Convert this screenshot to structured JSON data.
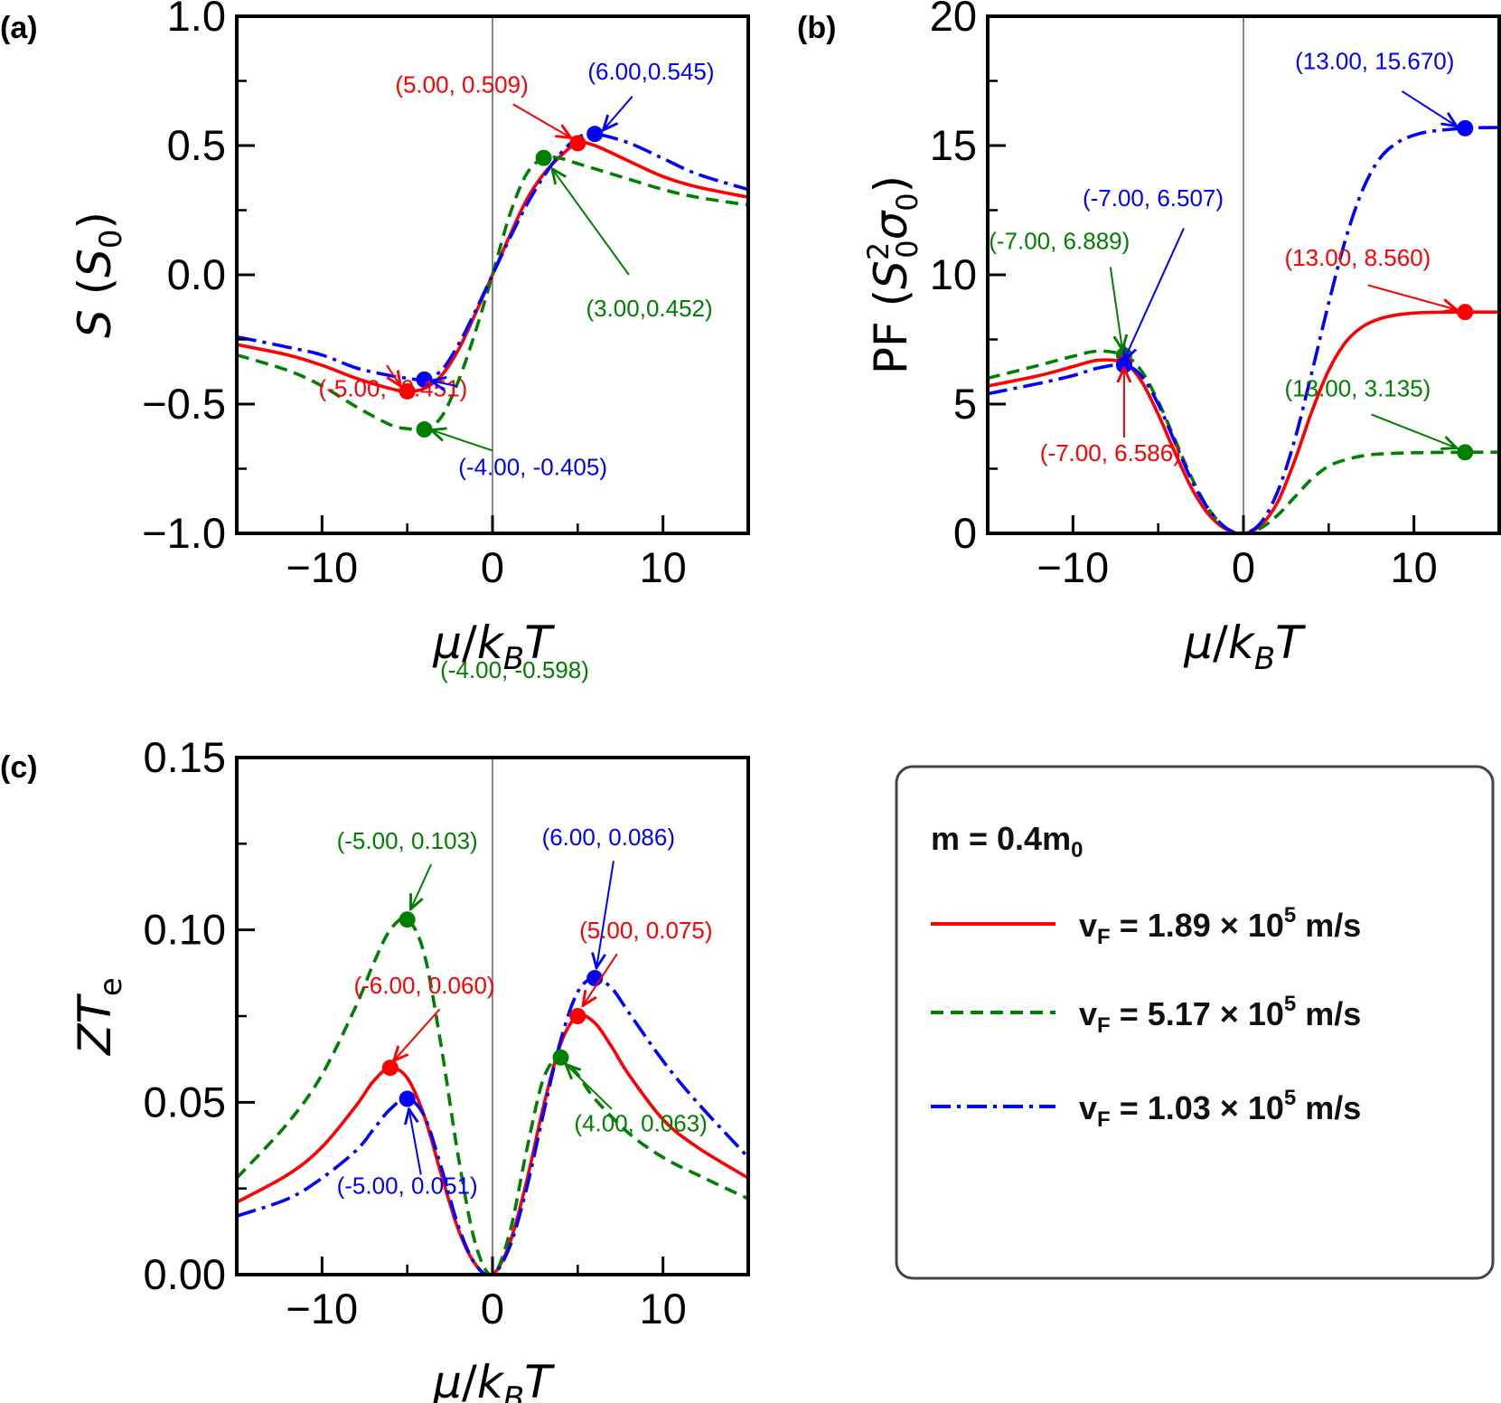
{
  "chart_data": [
    {
      "type": "line",
      "panel_label": "(a)",
      "xlabel": "μ/k_BT",
      "ylabel": "S (S0)",
      "xlim": [
        -15,
        15
      ],
      "ylim": [
        -1.0,
        1.0
      ],
      "xticks": [
        -10,
        0,
        10
      ],
      "xtick_labels": [
        "−10",
        "0",
        "10"
      ],
      "yticks": [
        -1.0,
        -0.5,
        0.0,
        0.5,
        1.0
      ],
      "ytick_labels": [
        "−1.0",
        "−0.5",
        "0.0",
        "0.5",
        "1.0"
      ],
      "series": [
        {
          "name": "red",
          "color": "#ff0000",
          "dash": "solid",
          "x": [
            -15,
            -12,
            -10,
            -8,
            -6,
            -5,
            -4,
            -3,
            -2,
            -1,
            0,
            1,
            2,
            3,
            4,
            5,
            6,
            8,
            10,
            12,
            15
          ],
          "y": [
            -0.27,
            -0.31,
            -0.35,
            -0.4,
            -0.44,
            -0.451,
            -0.44,
            -0.39,
            -0.29,
            -0.15,
            0.0,
            0.15,
            0.29,
            0.39,
            0.46,
            0.509,
            0.5,
            0.44,
            0.38,
            0.34,
            0.3
          ]
        },
        {
          "name": "green",
          "color": "#008000",
          "dash": "dashed",
          "x": [
            -15,
            -12,
            -10,
            -8,
            -6,
            -5,
            -4,
            -3,
            -2,
            -1,
            0,
            1,
            2,
            3,
            4,
            5,
            6,
            8,
            10,
            12,
            15
          ],
          "y": [
            -0.31,
            -0.37,
            -0.43,
            -0.51,
            -0.58,
            -0.595,
            -0.598,
            -0.55,
            -0.41,
            -0.22,
            0.0,
            0.23,
            0.39,
            0.452,
            0.45,
            0.43,
            0.41,
            0.37,
            0.33,
            0.3,
            0.27
          ]
        },
        {
          "name": "blue",
          "color": "#0000ff",
          "dash": "dashdot",
          "x": [
            -15,
            -12,
            -10,
            -8,
            -6,
            -5,
            -4,
            -3,
            -2,
            -1,
            0,
            1,
            2,
            3,
            4,
            5,
            6,
            8,
            10,
            12,
            15
          ],
          "y": [
            -0.24,
            -0.28,
            -0.31,
            -0.36,
            -0.39,
            -0.4,
            -0.405,
            -0.37,
            -0.27,
            -0.14,
            0.0,
            0.14,
            0.27,
            0.38,
            0.47,
            0.53,
            0.545,
            0.51,
            0.45,
            0.39,
            0.33
          ]
        }
      ],
      "markers": [
        {
          "x": 5,
          "y": 0.509,
          "color": "#ff0000"
        },
        {
          "x": 6,
          "y": 0.545,
          "color": "#0000ff"
        },
        {
          "x": 3,
          "y": 0.452,
          "color": "#008000"
        },
        {
          "x": -5,
          "y": -0.451,
          "color": "#ff0000"
        },
        {
          "x": -4,
          "y": -0.405,
          "color": "#0000ff"
        },
        {
          "x": -4,
          "y": -0.598,
          "color": "#008000"
        }
      ],
      "annotations": [
        {
          "text": "(5.00, 0.509)",
          "color": "#ff0000",
          "tx": -1.8,
          "ty": 0.705,
          "anchor": "middle",
          "ax": 4.6,
          "ay": 0.53,
          "sx": 1.2,
          "sy": 0.66
        },
        {
          "text": "(6.00,0.545)",
          "color": "#0000ff",
          "tx": 9.3,
          "ty": 0.755,
          "anchor": "middle",
          "ax": 6.5,
          "ay": 0.56,
          "sx": 8.2,
          "sy": 0.69
        },
        {
          "text": "(3.00,0.452)",
          "color": "#008000",
          "tx": 9.2,
          "ty": -0.16,
          "anchor": "middle",
          "ax": 3.5,
          "ay": 0.41,
          "sx": 8.0,
          "sy": 0.0
        },
        {
          "text": "(-5.00, -0.451)",
          "color": "#ff0000",
          "tx": -10.2,
          "ty": -0.47,
          "anchor": "start",
          "ax": -5.4,
          "ay": -0.43,
          "sx": -6.2,
          "sy": -0.35
        },
        {
          "text": "(-4.00, -0.405)",
          "color": "#0000ff",
          "tx": -2.0,
          "ty": -0.775,
          "anchor": "start",
          "ax": -3.6,
          "ay": -0.41,
          "sx": -2.1,
          "sy": -0.43
        },
        {
          "text": "(-4.00, -0.598)",
          "color": "#008000",
          "tx": 1.3,
          "ty": -1.56,
          "anchor": "middle",
          "ax": -3.6,
          "ay": -0.6,
          "sx": 0.0,
          "sy": -0.68
        }
      ]
    },
    {
      "type": "line",
      "panel_label": "(b)",
      "xlabel": "μ/k_BT",
      "ylabel": "PF (S0²σ0)",
      "xlim": [
        -15,
        15
      ],
      "ylim": [
        0,
        20
      ],
      "xticks": [
        -10,
        0,
        10
      ],
      "xtick_labels": [
        "−10",
        "0",
        "10"
      ],
      "yticks": [
        0,
        5,
        10,
        15,
        20
      ],
      "ytick_labels": [
        "0",
        "5",
        "10",
        "15",
        "20"
      ],
      "series": [
        {
          "name": "red",
          "color": "#ff0000",
          "dash": "solid",
          "x": [
            -15,
            -12,
            -10,
            -8.5,
            -7,
            -6,
            -5,
            -4,
            -3,
            -2,
            -1,
            0,
            1,
            2,
            3,
            4,
            5,
            6,
            7,
            8,
            9,
            10,
            11,
            13,
            15
          ],
          "y": [
            5.7,
            6.1,
            6.45,
            6.7,
            6.586,
            5.9,
            4.6,
            3.1,
            1.7,
            0.7,
            0.15,
            0.0,
            0.3,
            1.2,
            2.8,
            4.7,
            6.3,
            7.4,
            8.0,
            8.3,
            8.45,
            8.52,
            8.55,
            8.56,
            8.56
          ]
        },
        {
          "name": "green",
          "color": "#008000",
          "dash": "dashed",
          "x": [
            -15,
            -12,
            -10,
            -8.5,
            -7,
            -6,
            -5,
            -4,
            -3,
            -2,
            -1,
            0,
            1,
            2,
            3,
            4,
            5,
            6,
            7,
            8,
            10,
            13,
            15
          ],
          "y": [
            6.0,
            6.5,
            6.85,
            7.05,
            6.889,
            6.3,
            5.1,
            3.6,
            2.1,
            0.9,
            0.2,
            0.0,
            0.2,
            0.7,
            1.4,
            2.1,
            2.6,
            2.85,
            3.0,
            3.07,
            3.12,
            3.135,
            3.14
          ]
        },
        {
          "name": "blue",
          "color": "#0000ff",
          "dash": "dashdot",
          "x": [
            -15,
            -12,
            -10,
            -8.5,
            -7,
            -6,
            -5,
            -4,
            -3,
            -2,
            -1,
            0,
            1,
            2,
            3,
            4,
            5,
            6,
            7,
            8,
            9,
            10,
            11,
            13,
            15
          ],
          "y": [
            5.4,
            5.8,
            6.1,
            6.4,
            6.507,
            6.1,
            5.0,
            3.5,
            2.0,
            0.9,
            0.2,
            0.0,
            0.4,
            1.6,
            3.6,
            6.2,
            8.9,
            11.4,
            13.3,
            14.5,
            15.1,
            15.4,
            15.55,
            15.67,
            15.7
          ]
        }
      ],
      "markers": [
        {
          "x": 13,
          "y": 15.67,
          "color": "#0000ff"
        },
        {
          "x": 13,
          "y": 8.56,
          "color": "#ff0000"
        },
        {
          "x": 13,
          "y": 3.135,
          "color": "#008000"
        },
        {
          "x": -7,
          "y": 6.889,
          "color": "#008000"
        },
        {
          "x": -7,
          "y": 6.586,
          "color": "#ff0000"
        },
        {
          "x": -7,
          "y": 6.507,
          "color": "#0000ff"
        }
      ],
      "annotations": [
        {
          "text": "(13.00, 15.670)",
          "color": "#0000ff",
          "tx": 7.7,
          "ty": 17.95,
          "anchor": "middle",
          "ax": 12.5,
          "ay": 15.75,
          "sx": 9.3,
          "sy": 17.1
        },
        {
          "text": "(-7.00, 6.507)",
          "color": "#0000ff",
          "tx": -5.3,
          "ty": 12.65,
          "anchor": "middle",
          "ax": -7.0,
          "ay": 6.7,
          "sx": -3.5,
          "sy": 11.8
        },
        {
          "text": "(-7.00, 6.889)",
          "color": "#008000",
          "tx": -10.8,
          "ty": 11.0,
          "anchor": "middle",
          "ax": -7.1,
          "ay": 7.1,
          "sx": -7.8,
          "sy": 10.3
        },
        {
          "text": "(13.00, 8.560)",
          "color": "#ff0000",
          "tx": 6.7,
          "ty": 10.35,
          "anchor": "middle",
          "ax": 12.5,
          "ay": 8.65,
          "sx": 7.3,
          "sy": 9.6
        },
        {
          "text": "(13.00, 3.135)",
          "color": "#008000",
          "tx": 6.7,
          "ty": 5.3,
          "anchor": "middle",
          "ax": 12.5,
          "ay": 3.3,
          "sx": 7.5,
          "sy": 4.6
        },
        {
          "text": "(-7.00, 6.586)",
          "color": "#ff0000",
          "tx": -7.8,
          "ty": 2.8,
          "anchor": "middle",
          "ax": -7.0,
          "ay": 6.4,
          "sx": -7.0,
          "sy": 3.7
        }
      ]
    },
    {
      "type": "line",
      "panel_label": "(c)",
      "xlabel": "μ/k_BT",
      "ylabel": "ZTe",
      "xlim": [
        -15,
        15
      ],
      "ylim": [
        0.0,
        0.15
      ],
      "xticks": [
        -10,
        0,
        10
      ],
      "xtick_labels": [
        "−10",
        "0",
        "10"
      ],
      "yticks": [
        0.0,
        0.05,
        0.1,
        0.15
      ],
      "ytick_labels": [
        "0.00",
        "0.05",
        "0.10",
        "0.15"
      ],
      "series": [
        {
          "name": "red",
          "color": "#ff0000",
          "dash": "solid",
          "x": [
            -15,
            -12,
            -10,
            -8,
            -7,
            -6,
            -5,
            -4,
            -3,
            -2,
            -1,
            0,
            1,
            2,
            3,
            4,
            5,
            6,
            7,
            8,
            10,
            12,
            15
          ],
          "y": [
            0.021,
            0.029,
            0.037,
            0.049,
            0.056,
            0.06,
            0.057,
            0.046,
            0.029,
            0.013,
            0.003,
            0.0,
            0.009,
            0.027,
            0.049,
            0.067,
            0.075,
            0.073,
            0.066,
            0.058,
            0.045,
            0.037,
            0.028
          ]
        },
        {
          "name": "green",
          "color": "#008000",
          "dash": "dashed",
          "x": [
            -15,
            -12,
            -10,
            -8,
            -7,
            -6,
            -5,
            -4,
            -3,
            -2,
            -1,
            0,
            1,
            2,
            3,
            4,
            5,
            6,
            8,
            10,
            12,
            15
          ],
          "y": [
            0.028,
            0.044,
            0.058,
            0.078,
            0.09,
            0.1,
            0.103,
            0.093,
            0.066,
            0.034,
            0.009,
            0.0,
            0.012,
            0.036,
            0.057,
            0.063,
            0.058,
            0.051,
            0.041,
            0.034,
            0.029,
            0.022
          ]
        },
        {
          "name": "blue",
          "color": "#0000ff",
          "dash": "dashdot",
          "x": [
            -15,
            -12,
            -10,
            -8,
            -7,
            -6,
            -5,
            -4,
            -3,
            -2,
            -1,
            0,
            1,
            2,
            3,
            4,
            5,
            6,
            7,
            8,
            10,
            12,
            15
          ],
          "y": [
            0.017,
            0.022,
            0.028,
            0.036,
            0.042,
            0.048,
            0.051,
            0.046,
            0.031,
            0.014,
            0.003,
            0.0,
            0.008,
            0.025,
            0.047,
            0.068,
            0.082,
            0.086,
            0.083,
            0.076,
            0.062,
            0.05,
            0.034
          ]
        }
      ],
      "markers": [
        {
          "x": -5,
          "y": 0.103,
          "color": "#008000"
        },
        {
          "x": -6,
          "y": 0.06,
          "color": "#ff0000"
        },
        {
          "x": -5,
          "y": 0.051,
          "color": "#0000ff"
        },
        {
          "x": 6,
          "y": 0.086,
          "color": "#0000ff"
        },
        {
          "x": 5,
          "y": 0.075,
          "color": "#ff0000"
        },
        {
          "x": 4,
          "y": 0.063,
          "color": "#008000"
        }
      ],
      "annotations": [
        {
          "text": "(-5.00, 0.103)",
          "color": "#008000",
          "tx": -5.0,
          "ty": 0.1235,
          "anchor": "middle",
          "ax": -4.8,
          "ay": 0.106,
          "sx": -3.6,
          "sy": 0.119
        },
        {
          "text": "(6.00, 0.086)",
          "color": "#0000ff",
          "tx": 6.8,
          "ty": 0.1245,
          "anchor": "middle",
          "ax": 6.1,
          "ay": 0.089,
          "sx": 7.1,
          "sy": 0.12
        },
        {
          "text": "(5.00, 0.075)",
          "color": "#ff0000",
          "tx": 9.0,
          "ty": 0.0975,
          "anchor": "middle",
          "ax": 5.3,
          "ay": 0.078,
          "sx": 7.3,
          "sy": 0.093
        },
        {
          "text": "(-6.00, 0.060)",
          "color": "#ff0000",
          "tx": -4.0,
          "ty": 0.0815,
          "anchor": "middle",
          "ax": -5.8,
          "ay": 0.062,
          "sx": -3.1,
          "sy": 0.077
        },
        {
          "text": "(-5.00, 0.051)",
          "color": "#0000ff",
          "tx": -5.0,
          "ty": 0.0235,
          "anchor": "middle",
          "ax": -4.9,
          "ay": 0.048,
          "sx": -4.2,
          "sy": 0.029
        },
        {
          "text": "(4.00, 0.063)",
          "color": "#008000",
          "tx": 8.7,
          "ty": 0.0415,
          "anchor": "middle",
          "ax": 4.3,
          "ay": 0.061,
          "sx": 7.0,
          "sy": 0.048
        }
      ]
    }
  ],
  "legend": {
    "title": "m = 0.4m",
    "title_sub": "0",
    "entries": [
      {
        "prefix": "v",
        "sub": "F",
        "text": " = 1.89 × 10",
        "sup": "5",
        "suffix": " m/s",
        "color": "#ff0000",
        "dash": "solid"
      },
      {
        "prefix": "v",
        "sub": "F",
        "text": " = 5.17 × 10",
        "sup": "5",
        "suffix": " m/s",
        "color": "#008000",
        "dash": "dashed"
      },
      {
        "prefix": "v",
        "sub": "F",
        "text": " = 1.03 × 10",
        "sup": "5",
        "suffix": " m/s",
        "color": "#0000ff",
        "dash": "dashdot"
      }
    ]
  }
}
